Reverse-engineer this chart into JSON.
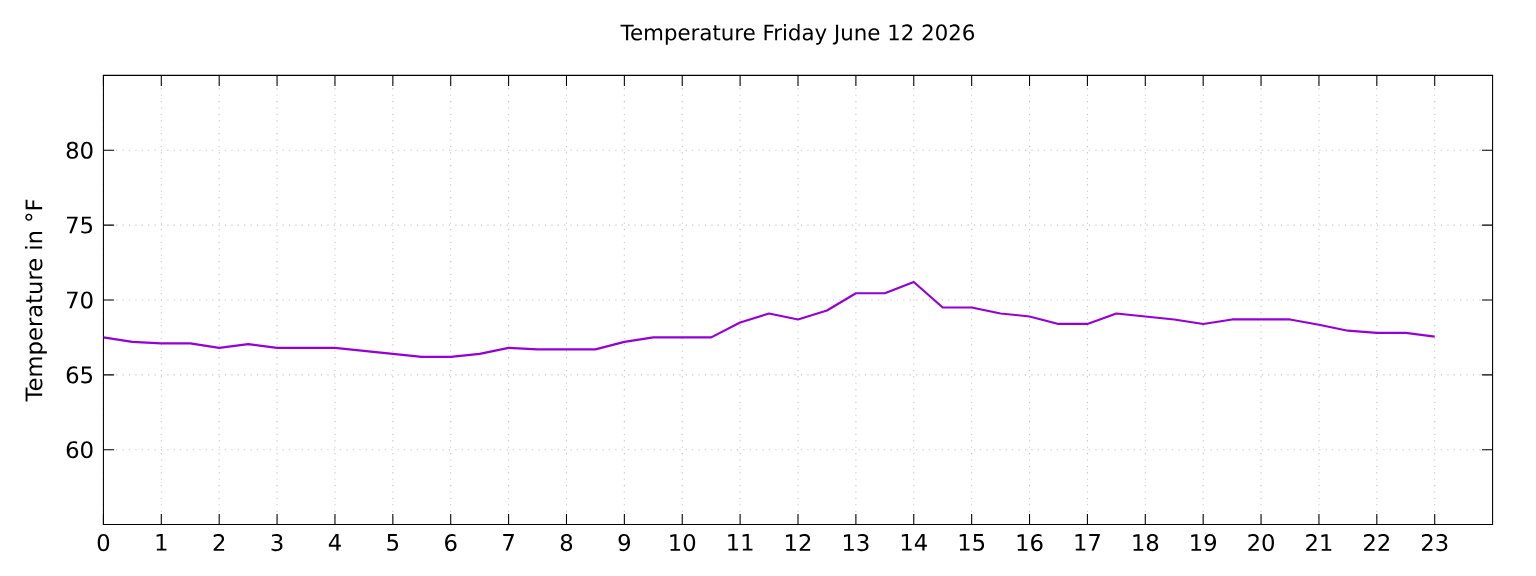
{
  "chart_data": {
    "type": "line",
    "title": "Temperature Friday June 12 2026",
    "ylabel": "Temperature in °F",
    "x": [
      0,
      0.5,
      1,
      1.5,
      2,
      2.5,
      3,
      3.5,
      4,
      4.5,
      5,
      5.5,
      6,
      6.5,
      7,
      7.5,
      8,
      8.5,
      9,
      9.5,
      10,
      10.5,
      11,
      11.5,
      12,
      12.5,
      13,
      13.5,
      14,
      14.5,
      15,
      15.5,
      16,
      16.5,
      17,
      17.5,
      18,
      18.5,
      19,
      19.5,
      20,
      20.5,
      21,
      21.5,
      22,
      22.5,
      23
    ],
    "series": [
      {
        "color": "#9400d3",
        "values": [
          67.5,
          67.2,
          67.1,
          67.1,
          66.8,
          67.05,
          66.8,
          66.8,
          66.8,
          66.6,
          66.4,
          66.2,
          66.2,
          66.4,
          66.8,
          66.7,
          66.7,
          66.7,
          67.2,
          67.5,
          67.5,
          67.5,
          68.5,
          69.1,
          68.7,
          69.3,
          70.45,
          70.45,
          71.2,
          69.5,
          69.5,
          69.1,
          68.9,
          68.4,
          68.4,
          69.1,
          68.9,
          68.7,
          68.4,
          68.7,
          68.7,
          68.7,
          68.35,
          67.95,
          67.8,
          67.8,
          67.55
        ]
      }
    ],
    "xlim": [
      0,
      24
    ],
    "ylim": [
      55,
      85
    ],
    "xticks": [
      0,
      1,
      2,
      3,
      4,
      5,
      6,
      7,
      8,
      9,
      10,
      11,
      12,
      13,
      14,
      15,
      16,
      17,
      18,
      19,
      20,
      21,
      22,
      23
    ],
    "yticks": [
      60,
      65,
      70,
      75,
      80
    ],
    "grid": true,
    "legend": false,
    "marker": "none",
    "line_style": "solid"
  }
}
